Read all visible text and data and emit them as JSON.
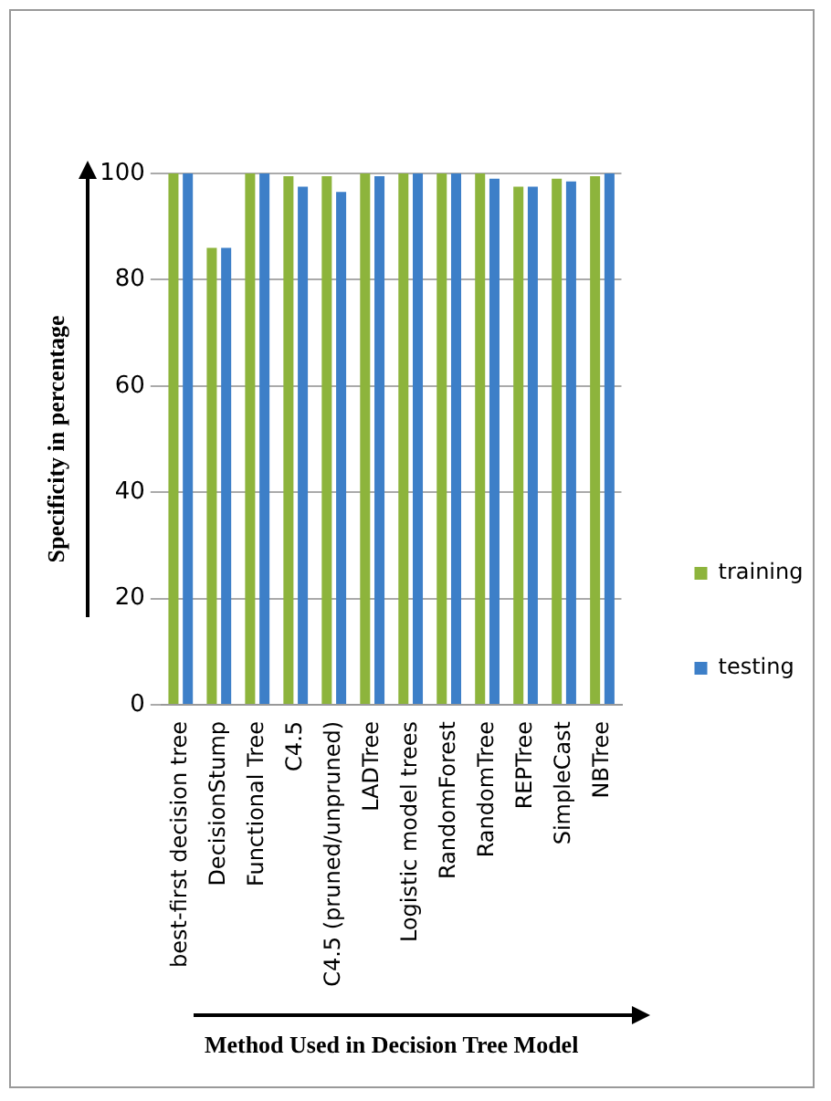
{
  "chart_data": {
    "type": "bar",
    "xlabel": "Method Used in Decision Tree Model",
    "ylabel": "Specificity in percentage",
    "categories": [
      "best-first decision tree",
      "DecisionStump",
      "Functional Tree",
      "C4.5",
      "C4.5 (pruned/unpruned)",
      "LADTree",
      "Logistic model trees",
      "RandomForest",
      "RandomTree",
      "REPTree",
      "SimpleCast",
      "NBTree"
    ],
    "series": [
      {
        "name": "training",
        "color": "#8db43c",
        "values": [
          100,
          86,
          100,
          99.5,
          99.5,
          100,
          100,
          100,
          100,
          97.5,
          99,
          99.5
        ]
      },
      {
        "name": "testing",
        "color": "#3d7fc8",
        "values": [
          100,
          86,
          100,
          97.5,
          96.5,
          99.5,
          100,
          100,
          99,
          97.5,
          98.5,
          100
        ]
      }
    ],
    "ylim": [
      0,
      100
    ],
    "yticks": [
      0,
      20,
      40,
      60,
      80,
      100
    ],
    "grid": "y",
    "legend": "right"
  }
}
